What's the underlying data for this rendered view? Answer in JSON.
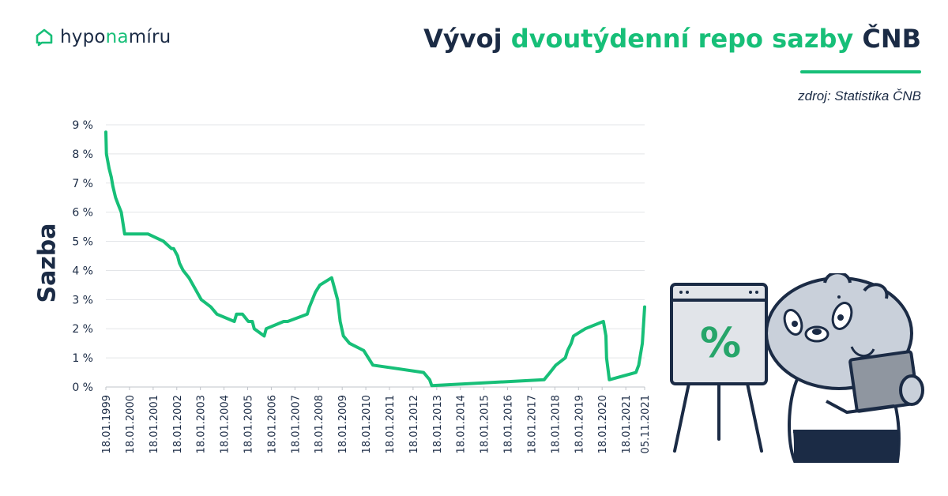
{
  "brand": {
    "logo_part1": "hypo",
    "logo_part2": "na",
    "logo_part3": "míru",
    "accent_color": "#17bf78",
    "dark_color": "#1b2b45"
  },
  "header": {
    "title_part1": "Vývoj ",
    "title_part2": "dvoutýdenní repo sazby",
    "title_part3": " ČNB",
    "source": "zdroj: Statistika ČNB"
  },
  "illustration": {
    "board_symbol": "%",
    "icons": [
      "home-chat-icon",
      "bear-mascot-icon",
      "easel-board-icon",
      "laptop-icon"
    ]
  },
  "chart_data": {
    "type": "line",
    "ylabel": "Sazba",
    "ylim": [
      0,
      9
    ],
    "yticks": [
      "0 %",
      "1 %",
      "2 %",
      "3 %",
      "4 %",
      "5 %",
      "6 %",
      "7 %",
      "8 %",
      "9 %"
    ],
    "xticks": [
      "18.01.1999",
      "18.01.2000",
      "18.01.2001",
      "18.01.2002",
      "18.01.2003",
      "18.01.2004",
      "18.01.2005",
      "18.01.2006",
      "18.01.2007",
      "18.01.2008",
      "18.01.2009",
      "18.01.2010",
      "18.01.2011",
      "18.01.2012",
      "18.01.2013",
      "18.01.2014",
      "18.01.2015",
      "18.01.2016",
      "18.01.2017",
      "18.01.2018",
      "18.01.2019",
      "18.01.2020",
      "18.01.2021",
      "05.11.2021"
    ],
    "grid": true,
    "line_color": "#17bf78",
    "series": [
      {
        "x": [
          "1999-01-18",
          "1999-01-27",
          "1999-03-09",
          "1999-04-12",
          "1999-05-05",
          "1999-06-17",
          "1999-07-30",
          "1999-09-13",
          "1999-11-04",
          "2000-11-01",
          "2001-06-29",
          "2001-10-29",
          "2001-11-30",
          "2002-01-31",
          "2002-03-01",
          "2002-04-26",
          "2002-07-26",
          "2003-01-31",
          "2003-06-27",
          "2003-10-01",
          "2004-06-25",
          "2004-07-30",
          "2004-08-27",
          "2004-10-29",
          "2005-01-28",
          "2005-03-31",
          "2005-04-29",
          "2005-09-30",
          "2005-10-31",
          "2006-07-28",
          "2006-09-29",
          "2007-07-27",
          "2007-08-31",
          "2007-11-30",
          "2008-02-08",
          "2008-08-08",
          "2008-11-07",
          "2008-12-18",
          "2009-02-06",
          "2009-05-11",
          "2009-12-17",
          "2010-05-07",
          "2012-06-29",
          "2012-10-01",
          "2012-11-02",
          "2017-08-04",
          "2017-11-03",
          "2018-02-02",
          "2018-06-28",
          "2018-08-03",
          "2018-09-27",
          "2018-11-02",
          "2019-05-03",
          "2020-02-07",
          "2020-03-17",
          "2020-03-27",
          "2020-05-08",
          "2021-06-24",
          "2021-08-06",
          "2021-10-01",
          "2021-11-05"
        ],
        "values": [
          8.75,
          8.0,
          7.5,
          7.2,
          6.9,
          6.5,
          6.25,
          6.0,
          5.25,
          5.25,
          5.0,
          4.75,
          4.75,
          4.5,
          4.25,
          4.0,
          3.75,
          3.0,
          2.75,
          2.5,
          2.25,
          2.5,
          2.5,
          2.5,
          2.25,
          2.25,
          2.0,
          1.75,
          2.0,
          2.25,
          2.25,
          2.5,
          2.75,
          3.25,
          3.5,
          3.75,
          3.0,
          2.25,
          1.75,
          1.5,
          1.25,
          0.75,
          0.5,
          0.25,
          0.05,
          0.25,
          0.5,
          0.75,
          1.0,
          1.25,
          1.5,
          1.75,
          2.0,
          2.25,
          1.75,
          1.0,
          0.25,
          0.5,
          0.75,
          1.5,
          2.75
        ]
      }
    ]
  }
}
